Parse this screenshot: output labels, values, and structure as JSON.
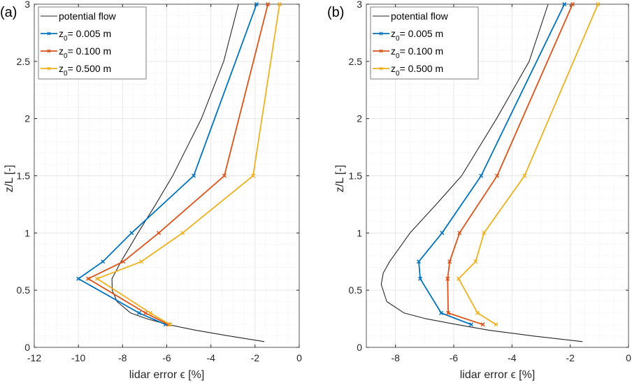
{
  "chart_data": [
    {
      "type": "line",
      "panel_label": "(a)",
      "xlabel": "lidar error ϵ [%]",
      "ylabel": "z/L [-]",
      "xlim": [
        -12,
        0
      ],
      "ylim": [
        0,
        3
      ],
      "xticks": [
        -12,
        -10,
        -8,
        -6,
        -4,
        -2,
        0
      ],
      "xtick_labels": [
        "-12",
        "-10",
        "-8",
        "-6",
        "-4",
        "-2",
        "0"
      ],
      "yticks": [
        0,
        0.5,
        1,
        1.5,
        2,
        2.5,
        3
      ],
      "ytick_labels": [
        "0",
        "0.5",
        "1",
        "1.5",
        "2",
        "2.5",
        "3"
      ],
      "grid": "major and minor",
      "legend_position": "top-left",
      "series": [
        {
          "name": "potential flow",
          "legend_main": "potential flow",
          "legend_sub": "",
          "legend_rest": "",
          "color": "#262626",
          "markers": false,
          "points": [
            [
              -1.58,
              0.05
            ],
            [
              -3.2,
              0.1
            ],
            [
              -4.7,
              0.15
            ],
            [
              -5.95,
              0.2
            ],
            [
              -6.9,
              0.25
            ],
            [
              -7.63,
              0.3
            ],
            [
              -8.25,
              0.4
            ],
            [
              -8.47,
              0.5
            ],
            [
              -8.48,
              0.6
            ],
            [
              -8.07,
              0.75
            ],
            [
              -7.3,
              1.0
            ],
            [
              -6.5,
              1.25
            ],
            [
              -5.73,
              1.5
            ],
            [
              -4.43,
              2.0
            ],
            [
              -3.42,
              2.5
            ],
            [
              -2.75,
              3.0
            ]
          ]
        },
        {
          "name": "z0 = 0.005 m",
          "legend_main": "z",
          "legend_sub": "0",
          "legend_rest": "= 0.005 m",
          "color": "#0072BD",
          "markers": true,
          "points": [
            [
              -6.05,
              0.2
            ],
            [
              -7.25,
              0.3
            ],
            [
              -10.0,
              0.6
            ],
            [
              -8.89,
              0.75
            ],
            [
              -7.59,
              1.0
            ],
            [
              -4.78,
              1.5
            ],
            [
              -1.93,
              3.0
            ]
          ]
        },
        {
          "name": "z0 = 0.100 m",
          "legend_main": "z",
          "legend_sub": "0",
          "legend_rest": "= 0.100 m",
          "color": "#D95319",
          "markers": true,
          "points": [
            [
              -5.92,
              0.2
            ],
            [
              -6.96,
              0.3
            ],
            [
              -9.56,
              0.6
            ],
            [
              -7.97,
              0.75
            ],
            [
              -6.36,
              1.0
            ],
            [
              -3.39,
              1.5
            ],
            [
              -1.42,
              3.0
            ]
          ]
        },
        {
          "name": "z0 = 0.500 m",
          "legend_main": "z",
          "legend_sub": "0",
          "legend_rest": "= 0.500 m",
          "color": "#EDB120",
          "markers": true,
          "points": [
            [
              -5.85,
              0.2
            ],
            [
              -6.74,
              0.3
            ],
            [
              -9.15,
              0.6
            ],
            [
              -7.15,
              0.75
            ],
            [
              -5.28,
              1.0
            ],
            [
              -2.09,
              1.5
            ],
            [
              -0.89,
              3.0
            ]
          ]
        }
      ]
    },
    {
      "type": "line",
      "panel_label": "(b)",
      "xlabel": "lidar error ϵ [%]",
      "ylabel": "z/L [-]",
      "xlim": [
        -9,
        0
      ],
      "ylim": [
        0,
        3
      ],
      "xticks": [
        -8,
        -6,
        -4,
        -2,
        0
      ],
      "xtick_labels": [
        "-8",
        "-6",
        "-4",
        "-2",
        "0"
      ],
      "yticks": [
        0,
        0.5,
        1,
        1.5,
        2,
        2.5,
        3
      ],
      "ytick_labels": [
        "0",
        "0.5",
        "1",
        "1.5",
        "2",
        "2.5",
        "3"
      ],
      "grid": "major and minor",
      "legend_position": "top-left",
      "series": [
        {
          "name": "potential flow",
          "legend_main": "potential flow",
          "legend_sub": "",
          "legend_rest": "",
          "color": "#262626",
          "markers": false,
          "points": [
            [
              -1.58,
              0.05
            ],
            [
              -3.3,
              0.1
            ],
            [
              -4.8,
              0.15
            ],
            [
              -5.9,
              0.2
            ],
            [
              -6.95,
              0.25
            ],
            [
              -7.7,
              0.3
            ],
            [
              -8.3,
              0.4
            ],
            [
              -8.49,
              0.55
            ],
            [
              -8.42,
              0.65
            ],
            [
              -8.2,
              0.75
            ],
            [
              -7.5,
              1.0
            ],
            [
              -6.6,
              1.25
            ],
            [
              -5.73,
              1.5
            ],
            [
              -4.53,
              2.0
            ],
            [
              -3.41,
              2.5
            ],
            [
              -2.76,
              3.0
            ]
          ]
        },
        {
          "name": "z0 = 0.005 m",
          "legend_main": "z",
          "legend_sub": "0",
          "legend_rest": "= 0.005 m",
          "color": "#0072BD",
          "markers": true,
          "points": [
            [
              -5.4,
              0.2
            ],
            [
              -6.43,
              0.3
            ],
            [
              -7.15,
              0.6
            ],
            [
              -7.2,
              0.75
            ],
            [
              -6.4,
              1.0
            ],
            [
              -5.06,
              1.5
            ],
            [
              -2.2,
              3.0
            ]
          ]
        },
        {
          "name": "z0 = 0.100 m",
          "legend_main": "z",
          "legend_sub": "0",
          "legend_rest": "= 0.100 m",
          "color": "#D95319",
          "markers": true,
          "points": [
            [
              -5.0,
              0.2
            ],
            [
              -6.19,
              0.3
            ],
            [
              -6.21,
              0.6
            ],
            [
              -6.14,
              0.75
            ],
            [
              -5.8,
              1.0
            ],
            [
              -4.51,
              1.5
            ],
            [
              -1.92,
              3.0
            ]
          ]
        },
        {
          "name": "z0 = 0.500 m",
          "legend_main": "z",
          "legend_sub": "0",
          "legend_rest": "= 0.500 m",
          "color": "#EDB120",
          "markers": true,
          "points": [
            [
              -4.55,
              0.2
            ],
            [
              -5.18,
              0.3
            ],
            [
              -5.83,
              0.6
            ],
            [
              -5.25,
              0.75
            ],
            [
              -4.96,
              1.0
            ],
            [
              -3.57,
              1.5
            ],
            [
              -1.05,
              3.0
            ]
          ]
        }
      ]
    }
  ]
}
